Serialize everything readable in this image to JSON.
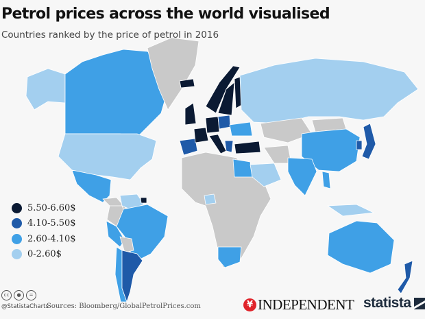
{
  "title": "Petrol prices across the world visualised",
  "subtitle": "Countries ranked by the price of petrol in 2016",
  "legend": [
    {
      "label": "5.50-6.60$",
      "color": "#0b1a33"
    },
    {
      "label": "4.10-5.50$",
      "color": "#1f5aa8"
    },
    {
      "label": "2.60-4.10$",
      "color": "#3fa0e6"
    },
    {
      "label": "0-2.60$",
      "color": "#a3cfef"
    }
  ],
  "no_data_color": "#c9c9c9",
  "map_data": {
    "tiers": {
      "5.50-6.60$": [
        "Norway",
        "Sweden",
        "Finland",
        "Denmark",
        "United Kingdom",
        "France",
        "Germany",
        "Italy",
        "Netherlands",
        "Turkey",
        "Iceland",
        "Suriname"
      ],
      "4.10-5.50$": [
        "Argentina",
        "Japan",
        "New Zealand",
        "Spain",
        "Poland",
        "Baltic states",
        "Greece",
        "South Korea"
      ],
      "2.60-4.10$": [
        "Canada",
        "Mexico",
        "Brazil",
        "Chile",
        "China",
        "India",
        "Australia",
        "South Africa",
        "Egypt",
        "Ukraine",
        "Thailand",
        "Peru"
      ],
      "0-2.60$": [
        "United States",
        "Alaska",
        "Russia",
        "Saudi Arabia",
        "Nigeria",
        "Venezuela",
        "Indonesia",
        "Malaysia"
      ]
    }
  },
  "footer": {
    "cc_icons": [
      "cc",
      "by",
      "nd"
    ],
    "handle": "@StatistaCharts",
    "source": "Sources: Bloomberg/GlobalPetrolPrices.com",
    "independent_logo": "INDEPENDENT",
    "statista_logo": "statista"
  }
}
